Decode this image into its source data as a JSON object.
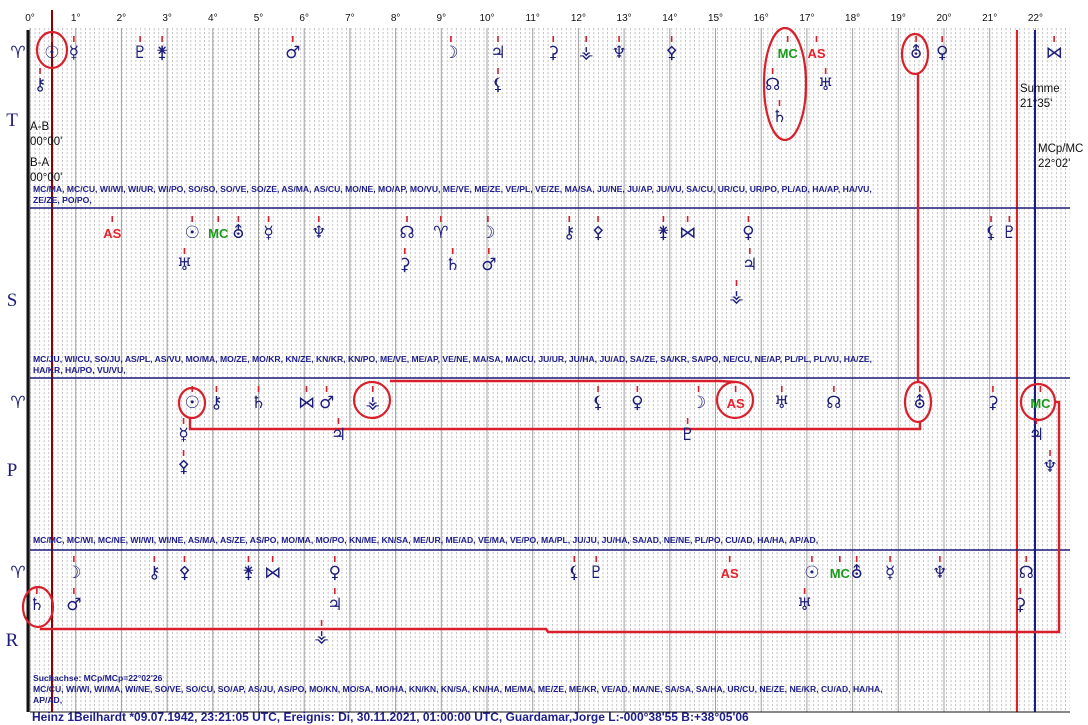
{
  "scale": [
    {
      "value": 0,
      "label": "0°"
    },
    {
      "value": 1,
      "label": "1°"
    },
    {
      "value": 2,
      "label": "2°"
    },
    {
      "value": 3,
      "label": "3°"
    },
    {
      "value": 4,
      "label": "4°"
    },
    {
      "value": 5,
      "label": "5°"
    },
    {
      "value": 6,
      "label": "6°"
    },
    {
      "value": 7,
      "label": "7°"
    },
    {
      "value": 8,
      "label": "8°"
    },
    {
      "value": 9,
      "label": "9°"
    },
    {
      "value": 10,
      "label": "10°"
    },
    {
      "value": 11,
      "label": "11°"
    },
    {
      "value": 12,
      "label": "12°"
    },
    {
      "value": 13,
      "label": "13°"
    },
    {
      "value": 14,
      "label": "14°"
    },
    {
      "value": 15,
      "label": "15°"
    },
    {
      "value": 16,
      "label": "16°"
    },
    {
      "value": 17,
      "label": "17°"
    },
    {
      "value": 18,
      "label": "18°"
    },
    {
      "value": 19,
      "label": "19°"
    },
    {
      "value": 20,
      "label": "20°"
    },
    {
      "value": 21,
      "label": "21°"
    },
    {
      "value": 22,
      "label": "22°"
    }
  ],
  "glyph_color": "#1c1c7a",
  "symbol_colors": {
    "AS": "#e8202a",
    "MC": "#1a9a1a"
  },
  "rows": [
    {
      "label": "T",
      "start": "♈",
      "tiers": [
        [
          {
            "symbol": "☉",
            "deg": 0.48
          },
          {
            "symbol": "☿",
            "deg": 0.96
          },
          {
            "symbol": "♇",
            "deg": 2.41
          },
          {
            "symbol": "⚵",
            "deg": 2.89
          },
          {
            "symbol": "♂",
            "deg": 5.75
          },
          {
            "symbol": "☽",
            "deg": 9.21
          },
          {
            "symbol": "♃",
            "deg": 10.24
          },
          {
            "symbol": "⚳",
            "deg": 11.45
          },
          {
            "symbol": "⚶",
            "deg": 12.17
          },
          {
            "symbol": "♆",
            "deg": 12.89
          },
          {
            "symbol": "⚴",
            "deg": 14.04
          },
          {
            "symbol": "MC",
            "deg": 16.58
          },
          {
            "symbol": "AS",
            "deg": 17.21
          },
          {
            "symbol": "⛢",
            "deg": 19.39
          },
          {
            "symbol": "♀",
            "deg": 19.96
          },
          {
            "symbol": "⋈",
            "deg": 22.41
          }
        ],
        [
          {
            "symbol": "⚷",
            "deg": 0.22
          },
          {
            "symbol": "⚸",
            "deg": 10.24
          },
          {
            "symbol": "☊",
            "deg": 16.25
          },
          {
            "symbol": "♅",
            "deg": 17.41
          }
        ],
        [
          {
            "symbol": "♄",
            "deg": 16.4
          }
        ]
      ],
      "pairs": [
        "MC/MA, MC/CU, WI/WI, WI/UR, WI/PO, SO/SO, SO/VE, SO/ZE, AS/MA, AS/CU, MO/NE, MO/AP, MO/VU, ME/VE, ME/ZE, VE/PL, VE/ZE, MA/SA, JU/NE, JU/AP, JU/VU, SA/CU, UR/CU, UR/PO, PL/AD, HA/AP, HA/VU,",
        "ZE/ZE, PO/PO,"
      ]
    },
    {
      "label": "S",
      "tiers": [
        [
          {
            "symbol": "AS",
            "deg": 1.8
          },
          {
            "symbol": "☉",
            "deg": 3.55
          },
          {
            "symbol": "MC",
            "deg": 4.12
          },
          {
            "symbol": "⛢",
            "deg": 4.56
          },
          {
            "symbol": "☿",
            "deg": 5.22
          },
          {
            "symbol": "♆",
            "deg": 6.32
          },
          {
            "symbol": "☊",
            "deg": 8.25
          },
          {
            "symbol": "♈",
            "deg": 8.99
          },
          {
            "symbol": "☽",
            "deg": 10.02
          },
          {
            "symbol": "⚷",
            "deg": 11.8
          },
          {
            "symbol": "⚴",
            "deg": 12.43
          },
          {
            "symbol": "⚵",
            "deg": 13.86
          },
          {
            "symbol": "⋈",
            "deg": 14.39
          },
          {
            "symbol": "♀",
            "deg": 15.72
          },
          {
            "symbol": "⚸",
            "deg": 21.03
          },
          {
            "symbol": "♇",
            "deg": 21.43
          }
        ],
        [
          {
            "symbol": "♅",
            "deg": 3.38
          },
          {
            "symbol": "⚳",
            "deg": 8.2
          },
          {
            "symbol": "♄",
            "deg": 9.25
          },
          {
            "symbol": "♂",
            "deg": 10.04
          },
          {
            "symbol": "♃",
            "deg": 15.75
          }
        ],
        [
          {
            "symbol": "⚶",
            "deg": 15.46
          }
        ]
      ],
      "pairs": [
        "MC/JU, WI/CU, SO/JU, AS/PL, AS/VU, MO/MA, MO/ZE, MO/KR, KN/ZE, KN/KR, KN/PO, ME/VE, ME/AP, VE/NE, MA/SA, MA/CU, JU/UR, JU/HA, JU/AD, SA/ZE, SA/KR, SA/PO, NE/CU, NE/AP, PL/PL, PL/VU, HA/ZE,",
        "HA/KR, HA/PO, VU/VU,"
      ]
    },
    {
      "label": "P",
      "start": "♈",
      "tiers": [
        [
          {
            "symbol": "☉",
            "deg": 3.55
          },
          {
            "symbol": "⚷",
            "deg": 4.08
          },
          {
            "symbol": "♄",
            "deg": 5.0
          },
          {
            "symbol": "⋈",
            "deg": 6.05
          },
          {
            "symbol": "♂",
            "deg": 6.49
          },
          {
            "symbol": "⚶",
            "deg": 7.5
          },
          {
            "symbol": "⚸",
            "deg": 12.43
          },
          {
            "symbol": "♀",
            "deg": 13.29
          },
          {
            "symbol": "☽",
            "deg": 14.63
          },
          {
            "symbol": "AS",
            "deg": 15.44
          },
          {
            "symbol": "♅",
            "deg": 16.45
          },
          {
            "symbol": "☊",
            "deg": 17.59
          },
          {
            "symbol": "⛢",
            "deg": 19.47
          },
          {
            "symbol": "⚳",
            "deg": 21.07
          },
          {
            "symbol": "MC",
            "deg": 22.11
          }
        ],
        [
          {
            "symbol": "☿",
            "deg": 3.36
          },
          {
            "symbol": "♃",
            "deg": 6.75
          },
          {
            "symbol": "♇",
            "deg": 14.39
          },
          {
            "symbol": "♃",
            "deg": 22.02
          }
        ],
        [
          {
            "symbol": "⚴",
            "deg": 3.36
          },
          {
            "symbol": "♆",
            "deg": 22.32
          }
        ]
      ],
      "pairs": [
        "MC/MC, MC/WI, MC/NE, WI/WI, WI/NE, AS/MA, AS/ZE, AS/PO, MO/MA, MO/PO, KN/ME, KN/SA, ME/UR, ME/AD, VE/MA, VE/PO, MA/PL, JU/JU, JU/HA, SA/AD, NE/NE, PL/PO, CU/AD, HA/HA, AP/AD,"
      ]
    },
    {
      "label": "R",
      "start": "♈",
      "tiers": [
        [
          {
            "symbol": "☽",
            "deg": 0.96
          },
          {
            "symbol": "⚷",
            "deg": 2.72
          },
          {
            "symbol": "⚴",
            "deg": 3.38
          },
          {
            "symbol": "⚵",
            "deg": 4.78
          },
          {
            "symbol": "⋈",
            "deg": 5.31
          },
          {
            "symbol": "♀",
            "deg": 6.67
          },
          {
            "symbol": "⚸",
            "deg": 11.91
          },
          {
            "symbol": "♇",
            "deg": 12.39
          },
          {
            "symbol": "AS",
            "deg": 15.31
          },
          {
            "symbol": "☉",
            "deg": 17.11
          },
          {
            "symbol": "MC",
            "deg": 17.72
          },
          {
            "symbol": "⛢",
            "deg": 18.09
          },
          {
            "symbol": "☿",
            "deg": 18.82
          },
          {
            "symbol": "♆",
            "deg": 19.91
          },
          {
            "symbol": "☊",
            "deg": 21.8
          }
        ],
        [
          {
            "symbol": "♄",
            "deg": 0.15
          },
          {
            "symbol": "♂",
            "deg": 0.96
          },
          {
            "symbol": "♃",
            "deg": 6.67
          },
          {
            "symbol": "♅",
            "deg": 16.95
          },
          {
            "symbol": "⚳",
            "deg": 21.67
          }
        ],
        [
          {
            "symbol": "⚶",
            "deg": 6.38
          }
        ]
      ],
      "pairs": [
        "MC/CU, WI/WI, WI/MA, WI/NE, SO/VE, SO/CU, SO/AP, AS/JU, AS/PO, MO/KN, MO/SA, MO/HA, KN/KN, KN/SA, KN/HA, ME/MA, ME/ZE, ME/KR, VE/AD, MA/NE, SA/SA, SA/HA, UR/CU, NE/ZE, NE/KR, CU/AD, HA/HA,",
        "AP/AD,"
      ]
    }
  ],
  "side": {
    "ab": "A-B",
    "ab_value": "00°00'",
    "ba": "B-A",
    "ba_value": "00°00'",
    "sum": "Summe",
    "sum_value": "21°35'",
    "axis": "MCp/MC",
    "axis_value": "22°02'"
  },
  "search_axis": "Suchachse: MCp/MCp=22°02'26",
  "footer": "Heinz 1Beilhardt  *09.07.1942, 23:21:05 UTC, Ereignis: Di, 30.11.2021, 01:00:00 UTC, Guardamar,Jorge L:-000°38'55 B:+38°05'06"
}
